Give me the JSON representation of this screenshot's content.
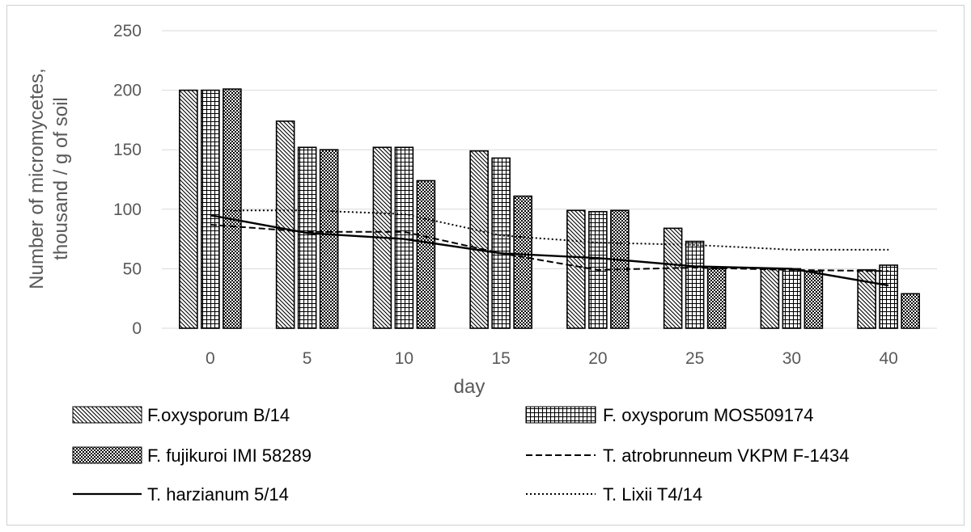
{
  "chart_data": {
    "type": "bar",
    "categories": [
      "0",
      "5",
      "10",
      "15",
      "20",
      "25",
      "30",
      "40"
    ],
    "xlabel": "day",
    "ylabel_lines": [
      "Number of micromycetes,",
      "thousand / g of soil"
    ],
    "ylim": [
      0,
      250
    ],
    "yticks": [
      0,
      50,
      100,
      150,
      200,
      250
    ],
    "grid": true,
    "legend_position": "bottom",
    "bar_series": [
      {
        "name": "F.oxysporum B/14",
        "pattern": "diagonal",
        "values": [
          200,
          174,
          152,
          149,
          99,
          84,
          50,
          49
        ]
      },
      {
        "name": "F. oxysporum  MOS509174",
        "pattern": "grid",
        "values": [
          200,
          152,
          152,
          143,
          98,
          73,
          50,
          53
        ]
      },
      {
        "name": "F. fujikuroi  IMI 58289",
        "pattern": "checker",
        "values": [
          201,
          150,
          124,
          111,
          99,
          50,
          48,
          29
        ]
      }
    ],
    "line_series": [
      {
        "name": "T. atrobrunneum  VKPM F-1434",
        "dash": "dashed",
        "values": [
          87,
          81,
          81,
          63,
          49,
          51,
          49,
          48
        ]
      },
      {
        "name": "T.  harzianum 5/14",
        "dash": "solid",
        "values": [
          95,
          80,
          75,
          63,
          59,
          52,
          50,
          36
        ]
      },
      {
        "name": "T. Lixii  T4/14",
        "dash": "dotted",
        "values": [
          99,
          99,
          96,
          78,
          72,
          70,
          66,
          66
        ]
      }
    ]
  }
}
